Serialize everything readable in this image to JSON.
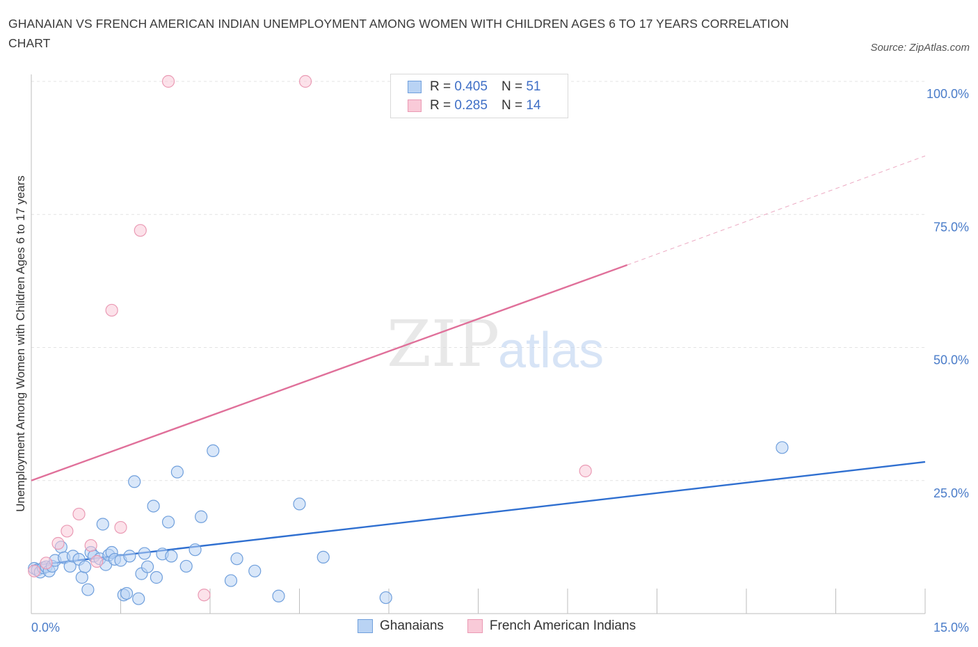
{
  "title_lines": [
    "GHANAIAN VS FRENCH AMERICAN INDIAN UNEMPLOYMENT AMONG WOMEN WITH CHILDREN AGES 6 TO 17 YEARS CORRELATION",
    "CHART"
  ],
  "source": "Source: ZipAtlas.com",
  "watermark": {
    "zip": "ZIP",
    "atlas": "atlas"
  },
  "legend_stats": [
    {
      "r_label": "R =",
      "r_value": "0.405",
      "n_label": "N =",
      "n_value": "51"
    },
    {
      "r_label": "R =",
      "r_value": "0.285",
      "n_label": "N =",
      "n_value": "14"
    }
  ],
  "colors": {
    "blue_fill": "#b9d3f4",
    "blue_stroke": "#6f9fdc",
    "blue_line": "#2f6fd0",
    "pink_fill": "#f9cad8",
    "pink_stroke": "#ea9ab4",
    "pink_line": "#e0709a"
  },
  "chart_data": {
    "type": "scatter",
    "title": "GHANAIAN VS FRENCH AMERICAN INDIAN UNEMPLOYMENT AMONG WOMEN WITH CHILDREN AGES 6 TO 17 YEARS CORRELATION CHART",
    "xlabel": "",
    "ylabel": "Unemployment Among Women with Children Ages 6 to 17 years",
    "xlim": [
      0,
      15
    ],
    "ylim": [
      0,
      100
    ],
    "x_tick_labels": [
      "0.0%",
      "15.0%"
    ],
    "y_ticks": [
      25,
      50,
      75,
      100
    ],
    "y_tick_labels": [
      "25.0%",
      "50.0%",
      "75.0%",
      "100.0%"
    ],
    "grid": "horizontal dashed",
    "legend": "top-center and bottom-center",
    "series": [
      {
        "name": "Ghanaians",
        "r": 0.405,
        "n": 51,
        "trend": {
          "x0": 0,
          "y0": 9.0,
          "x1": 15,
          "y1": 28.5
        },
        "points": [
          [
            0.05,
            8.5
          ],
          [
            0.1,
            8.2
          ],
          [
            0.15,
            7.8
          ],
          [
            0.2,
            8.6
          ],
          [
            0.25,
            8.8
          ],
          [
            0.3,
            8.0
          ],
          [
            0.35,
            8.9
          ],
          [
            0.4,
            10.0
          ],
          [
            0.5,
            12.5
          ],
          [
            0.55,
            10.5
          ],
          [
            0.65,
            8.9
          ],
          [
            0.7,
            10.8
          ],
          [
            0.8,
            10.2
          ],
          [
            0.85,
            6.8
          ],
          [
            0.9,
            8.8
          ],
          [
            0.95,
            4.5
          ],
          [
            1.0,
            11.5
          ],
          [
            1.05,
            10.8
          ],
          [
            1.15,
            10.3
          ],
          [
            1.2,
            16.8
          ],
          [
            1.25,
            9.2
          ],
          [
            1.3,
            11.0
          ],
          [
            1.35,
            11.5
          ],
          [
            1.4,
            10.2
          ],
          [
            1.5,
            10.0
          ],
          [
            1.55,
            3.5
          ],
          [
            1.6,
            3.8
          ],
          [
            1.65,
            10.8
          ],
          [
            1.73,
            24.8
          ],
          [
            1.8,
            2.8
          ],
          [
            1.85,
            7.5
          ],
          [
            1.9,
            11.3
          ],
          [
            1.95,
            8.8
          ],
          [
            2.05,
            20.2
          ],
          [
            2.1,
            6.8
          ],
          [
            2.2,
            11.2
          ],
          [
            2.3,
            17.2
          ],
          [
            2.35,
            10.8
          ],
          [
            2.45,
            26.6
          ],
          [
            2.6,
            8.9
          ],
          [
            2.75,
            12.0
          ],
          [
            2.85,
            18.2
          ],
          [
            3.05,
            30.6
          ],
          [
            3.35,
            6.2
          ],
          [
            3.45,
            10.3
          ],
          [
            3.75,
            8.0
          ],
          [
            4.15,
            3.3
          ],
          [
            4.5,
            20.6
          ],
          [
            4.9,
            10.6
          ],
          [
            5.95,
            3.0
          ],
          [
            12.6,
            31.2
          ]
        ]
      },
      {
        "name": "French American Indians",
        "r": 0.285,
        "n": 14,
        "trend": {
          "x0": 0,
          "y0": 25.0,
          "x1": 10.0,
          "y1": 65.5,
          "dashed_to_x": 15,
          "dashed_to_y": 86.0
        },
        "points": [
          [
            0.05,
            8.0
          ],
          [
            0.25,
            9.5
          ],
          [
            0.45,
            13.2
          ],
          [
            0.6,
            15.5
          ],
          [
            0.8,
            18.7
          ],
          [
            1.0,
            12.8
          ],
          [
            1.1,
            9.8
          ],
          [
            1.35,
            57.0
          ],
          [
            1.5,
            16.2
          ],
          [
            1.83,
            72.0
          ],
          [
            2.3,
            100.0
          ],
          [
            2.9,
            3.5
          ],
          [
            4.6,
            100.0
          ],
          [
            9.3,
            26.8
          ]
        ]
      }
    ]
  }
}
